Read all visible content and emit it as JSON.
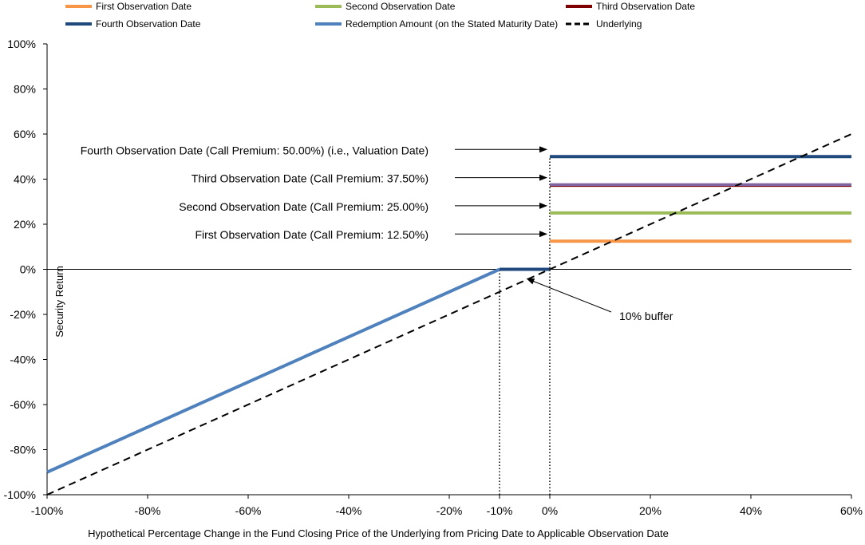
{
  "chart_data": {
    "type": "line",
    "xlabel": "Hypothetical Percentage Change in the Fund Closing Price of the Underlying from Pricing Date to Applicable Observation Date",
    "ylabel": "Security Return",
    "xlim": [
      -100,
      60
    ],
    "ylim": [
      -100,
      100
    ],
    "x_ticks": [
      {
        "value": -100,
        "label": "-100%"
      },
      {
        "value": -80,
        "label": "-80%"
      },
      {
        "value": -60,
        "label": "-60%"
      },
      {
        "value": -40,
        "label": "-40%"
      },
      {
        "value": -20,
        "label": "-20%"
      },
      {
        "value": -10,
        "label": "-10%"
      },
      {
        "value": 0,
        "label": "0%"
      },
      {
        "value": 20,
        "label": "20%"
      },
      {
        "value": 40,
        "label": "40%"
      },
      {
        "value": 60,
        "label": "60%"
      }
    ],
    "y_ticks": [
      {
        "value": 100,
        "label": "100%"
      },
      {
        "value": 80,
        "label": "80%"
      },
      {
        "value": 60,
        "label": "60%"
      },
      {
        "value": 40,
        "label": "40%"
      },
      {
        "value": 20,
        "label": "20%"
      },
      {
        "value": 0,
        "label": "0%"
      },
      {
        "value": -20,
        "label": "-20%"
      },
      {
        "value": -40,
        "label": "-40%"
      },
      {
        "value": -60,
        "label": "-60%"
      },
      {
        "value": -80,
        "label": "-80%"
      },
      {
        "value": -100,
        "label": "-100%"
      }
    ],
    "legend": {
      "position": "top",
      "entries": [
        {
          "name": "First Observation Date",
          "color": "#f79646",
          "style": "solid"
        },
        {
          "name": "Second Observation Date",
          "color": "#9bbb59",
          "style": "solid"
        },
        {
          "name": "Third Observation Date",
          "color": "#7f0000",
          "style": "solid"
        },
        {
          "name": "Fourth Observation Date",
          "color": "#1f497d",
          "style": "solid"
        },
        {
          "name": "Redemption Amount (on the Stated Maturity Date)",
          "color": "#4f81bd",
          "style": "solid"
        },
        {
          "name": "Underlying",
          "color": "#000000",
          "style": "dashed"
        }
      ]
    },
    "series": [
      {
        "name": "First Observation Date",
        "color": "#f79646",
        "points": [
          [
            0,
            12.5
          ],
          [
            60,
            12.5
          ]
        ]
      },
      {
        "name": "Second Observation Date",
        "color": "#9bbb59",
        "points": [
          [
            0,
            25
          ],
          [
            60,
            25
          ]
        ]
      },
      {
        "name": "Third Observation Date",
        "color": "#8064a2",
        "points": [
          [
            0,
            37.5
          ],
          [
            60,
            37.5
          ]
        ]
      },
      {
        "name": "Fourth Observation Date",
        "color": "#1f497d",
        "points": [
          [
            0,
            50
          ],
          [
            60,
            50
          ]
        ]
      },
      {
        "name": "Redemption Amount (on the Stated Maturity Date)",
        "color": "#4f81bd",
        "points": [
          [
            -100,
            -90
          ],
          [
            -10,
            0
          ]
        ]
      },
      {
        "name": "Redemption Amount (on the Stated Maturity Date)",
        "color": "#1f497d",
        "points": [
          [
            -10,
            0
          ],
          [
            0,
            0
          ]
        ]
      },
      {
        "name": "Underlying",
        "color": "#000000",
        "dashed": true,
        "points": [
          [
            -100,
            -100
          ],
          [
            60,
            60
          ]
        ]
      }
    ],
    "reference_lines": [
      {
        "x": -10,
        "from_y": -100,
        "to_y": 0,
        "style": "dotted"
      },
      {
        "x": 0,
        "from_y": -100,
        "to_y": 50,
        "style": "dotted"
      }
    ],
    "annotations": [
      {
        "text": "Fourth Observation Date (Call Premium: 50.00%) (i.e., Valuation Date)",
        "target": [
          0,
          50
        ]
      },
      {
        "text": "Third Observation Date (Call Premium: 37.50%)",
        "target": [
          0,
          37.5
        ]
      },
      {
        "text": "Second Observation Date (Call Premium: 25.00%)",
        "target": [
          0,
          25
        ]
      },
      {
        "text": "First Observation Date (Call Premium: 12.50%)",
        "target": [
          0,
          12.5
        ]
      },
      {
        "text": "10% buffer",
        "target": [
          -5,
          -3.5
        ]
      }
    ]
  }
}
